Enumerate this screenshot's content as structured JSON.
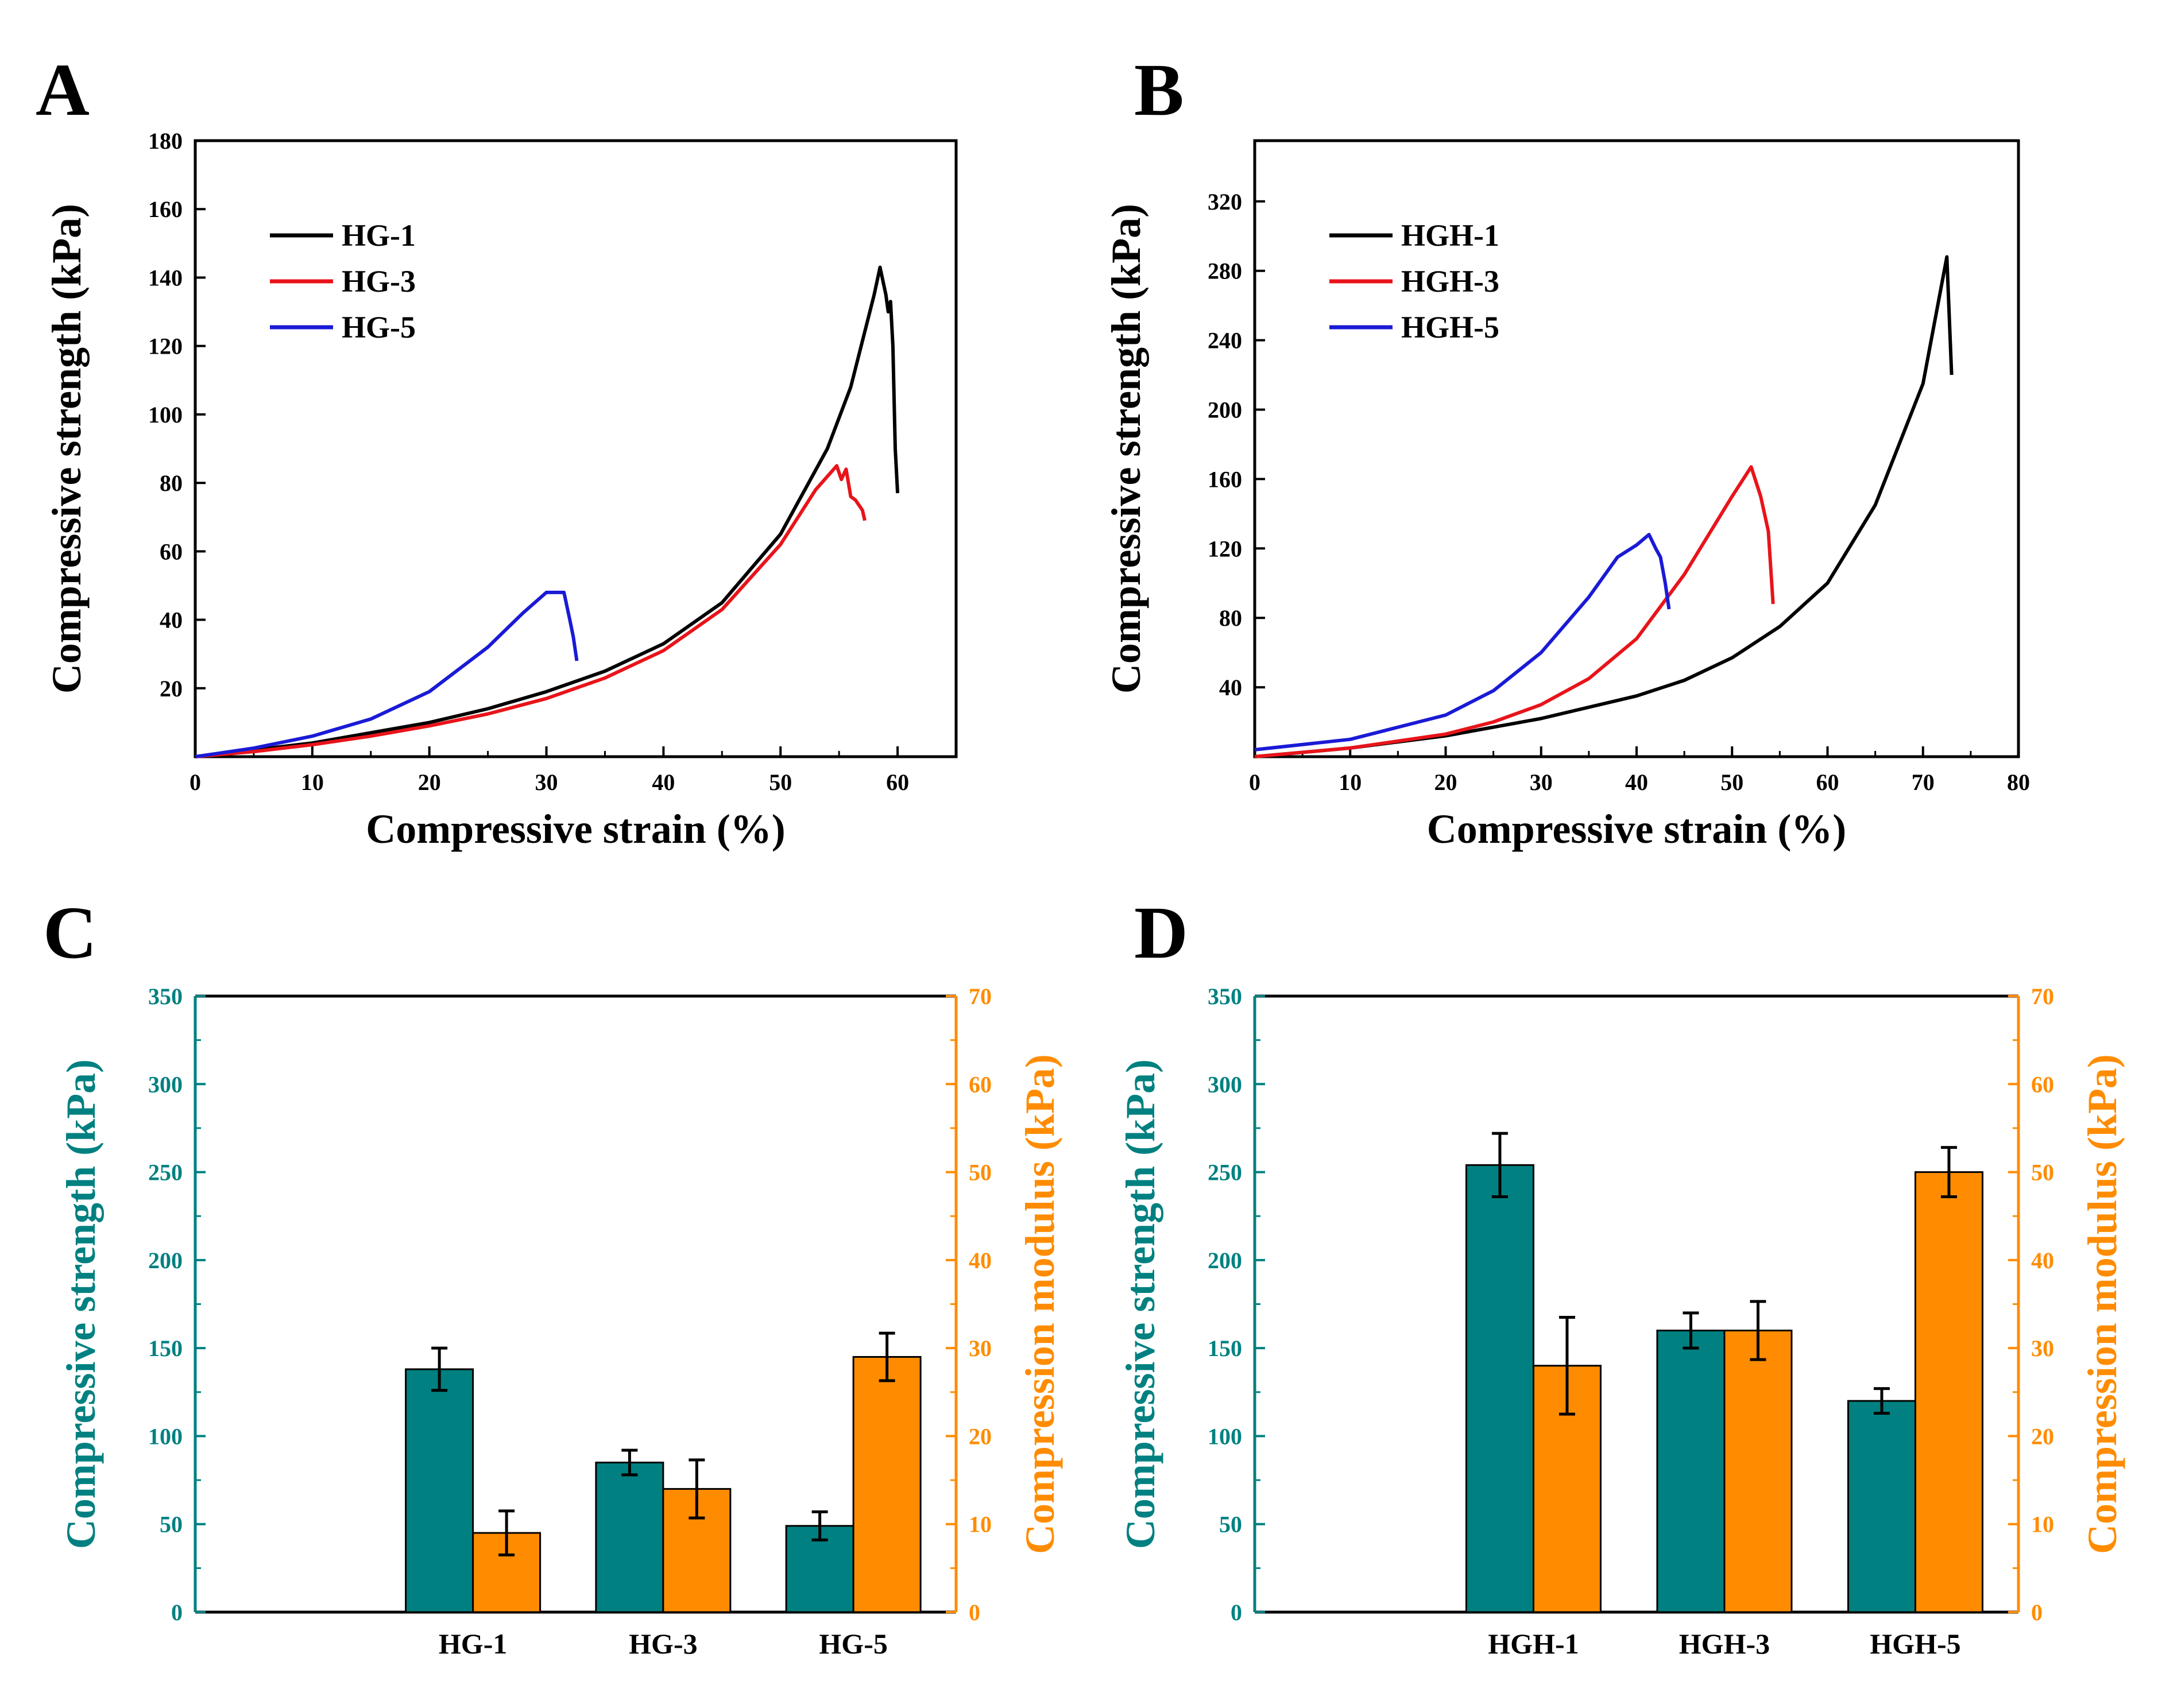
{
  "colors": {
    "axis": "#000000",
    "teal": "#008080",
    "orange": "#FF8C00",
    "hg1": "#000000",
    "hg3": "#E8141A",
    "hg5": "#1A1AD6"
  },
  "chart_data": [
    {
      "panel": "A",
      "type": "line",
      "xlabel": "Compressive strain (%)",
      "ylabel": "Compressive strength (kPa)",
      "xlim": [
        0,
        65
      ],
      "ylim": [
        0,
        180
      ],
      "xticks": [
        0,
        10,
        20,
        30,
        40,
        50,
        60
      ],
      "yticks": [
        20,
        40,
        60,
        80,
        100,
        120,
        140,
        160,
        180
      ],
      "legend_position": "top-left",
      "series": [
        {
          "name": "HG-1",
          "color_key": "hg1",
          "x": [
            0,
            5,
            10,
            15,
            20,
            25,
            30,
            35,
            40,
            45,
            50,
            54,
            56,
            58,
            58.5,
            59,
            59.2,
            59.4,
            59.6,
            59.8,
            60
          ],
          "y": [
            0,
            2,
            4,
            7,
            10,
            14,
            19,
            25,
            33,
            45,
            65,
            90,
            108,
            135,
            143,
            135,
            130,
            133,
            120,
            90,
            77
          ]
        },
        {
          "name": "HG-3",
          "color_key": "hg3",
          "x": [
            0,
            5,
            10,
            15,
            20,
            25,
            30,
            35,
            40,
            45,
            50,
            53,
            54.8,
            55.2,
            55.6,
            56,
            56.4,
            57,
            57.2
          ],
          "y": [
            0,
            1.5,
            3.5,
            6,
            9,
            12.5,
            17,
            23,
            31,
            43,
            62,
            78,
            85,
            81,
            84,
            76,
            75,
            72,
            69
          ]
        },
        {
          "name": "HG-5",
          "color_key": "hg5",
          "x": [
            0,
            5,
            10,
            15,
            20,
            25,
            28,
            30,
            31.5,
            32,
            32.3,
            32.6
          ],
          "y": [
            0,
            2.5,
            6,
            11,
            19,
            32,
            42,
            48,
            48,
            40,
            35,
            28
          ]
        }
      ]
    },
    {
      "panel": "B",
      "type": "line",
      "xlabel": "Compressive strain (%)",
      "ylabel": "Compressive strength (kPa)",
      "xlim": [
        0,
        80
      ],
      "ylim": [
        0,
        355
      ],
      "xticks": [
        0,
        10,
        20,
        30,
        40,
        50,
        60,
        70,
        80
      ],
      "yticks": [
        40,
        80,
        120,
        160,
        200,
        240,
        280,
        320
      ],
      "legend_position": "top-left",
      "series": [
        {
          "name": "HGH-1",
          "color_key": "hg1",
          "x": [
            0,
            10,
            20,
            30,
            40,
            45,
            50,
            55,
            60,
            65,
            70,
            72.5,
            73
          ],
          "y": [
            0,
            5,
            12,
            22,
            35,
            44,
            57,
            75,
            100,
            145,
            215,
            288,
            220
          ]
        },
        {
          "name": "HGH-3",
          "color_key": "hg3",
          "x": [
            0,
            10,
            20,
            25,
            30,
            35,
            40,
            45,
            50,
            52,
            53,
            53.8,
            54.3
          ],
          "y": [
            0,
            5,
            13,
            20,
            30,
            45,
            68,
            105,
            150,
            167,
            150,
            130,
            88
          ]
        },
        {
          "name": "HGH-5",
          "color_key": "hg5",
          "x": [
            0,
            10,
            20,
            25,
            30,
            35,
            38,
            40,
            41.3,
            42,
            42.5,
            43,
            43.4
          ],
          "y": [
            4,
            10,
            24,
            38,
            60,
            92,
            115,
            122,
            128,
            120,
            115,
            100,
            85
          ]
        }
      ]
    },
    {
      "panel": "C",
      "type": "bar",
      "categories": [
        "HG-1",
        "HG-3",
        "HG-5"
      ],
      "ylabel": "Compressive strength (kPa)",
      "y2label": "Compression modulus (kPa)",
      "ylim": [
        0,
        350
      ],
      "y2lim": [
        0,
        70
      ],
      "yticks": [
        0,
        50,
        100,
        150,
        200,
        250,
        300,
        350
      ],
      "y2ticks": [
        0,
        10,
        20,
        30,
        40,
        50,
        60,
        70
      ],
      "series": [
        {
          "name": "Compressive strength",
          "axis": "left",
          "color_key": "teal",
          "values": [
            138,
            85,
            49
          ],
          "errors": [
            12,
            7,
            8
          ]
        },
        {
          "name": "Compression modulus",
          "axis": "right",
          "color_key": "orange",
          "values": [
            9,
            14,
            29
          ],
          "errors": [
            2.5,
            3.3,
            2.7
          ]
        }
      ]
    },
    {
      "panel": "D",
      "type": "bar",
      "categories": [
        "HGH-1",
        "HGH-3",
        "HGH-5"
      ],
      "ylabel": "Compressive strength (kPa)",
      "y2label": "Compression modulus (kPa)",
      "ylim": [
        0,
        350
      ],
      "y2lim": [
        0,
        70
      ],
      "yticks": [
        0,
        50,
        100,
        150,
        200,
        250,
        300,
        350
      ],
      "y2ticks": [
        0,
        10,
        20,
        30,
        40,
        50,
        60,
        70
      ],
      "series": [
        {
          "name": "Compressive strength",
          "axis": "left",
          "color_key": "teal",
          "values": [
            254,
            160,
            120
          ],
          "errors": [
            18,
            10,
            7
          ]
        },
        {
          "name": "Compression modulus",
          "axis": "right",
          "color_key": "orange",
          "values": [
            28,
            32,
            50
          ],
          "errors": [
            5.5,
            3.3,
            2.8
          ]
        }
      ]
    }
  ]
}
